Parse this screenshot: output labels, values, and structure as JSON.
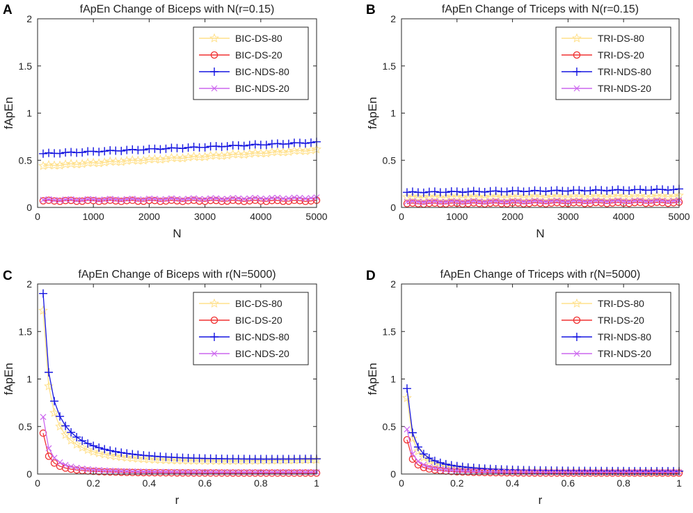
{
  "chart_data": [
    {
      "panel": "A",
      "type": "line",
      "title": "fApEn Change of Biceps with N(r=0.15)",
      "xlabel": "N",
      "ylabel": "fApEn",
      "xlim": [
        0,
        5000
      ],
      "ylim": [
        0,
        2
      ],
      "xticks": [
        0,
        1000,
        2000,
        3000,
        4000,
        5000
      ],
      "xtick_labels": [
        "0",
        "1000",
        "2000",
        "3000",
        "4000",
        "5000"
      ],
      "yticks": [
        0,
        0.5,
        1,
        1.5,
        2
      ],
      "ytick_labels": [
        "0",
        "0.5",
        "1",
        "1.5",
        "2"
      ],
      "legend_position": "top-right",
      "series": [
        {
          "name": "BIC-DS-80",
          "color": "#ffe08a",
          "marker": "star",
          "x_range": [
            100,
            5000
          ],
          "points": 50,
          "y_start": 0.44,
          "y_end": 0.61,
          "shape": "linear"
        },
        {
          "name": "BIC-DS-20",
          "color": "#f03030",
          "marker": "circle",
          "x_range": [
            100,
            5000
          ],
          "points": 50,
          "y_start": 0.07,
          "y_end": 0.07,
          "shape": "linear"
        },
        {
          "name": "BIC-NDS-80",
          "color": "#1515e0",
          "marker": "plus",
          "x_range": [
            100,
            5000
          ],
          "points": 50,
          "y_start": 0.57,
          "y_end": 0.69,
          "shape": "linear"
        },
        {
          "name": "BIC-NDS-20",
          "color": "#cc66ee",
          "marker": "cross",
          "x_range": [
            100,
            5000
          ],
          "points": 50,
          "y_start": 0.08,
          "y_end": 0.1,
          "shape": "linear"
        }
      ]
    },
    {
      "panel": "B",
      "type": "line",
      "title": "fApEn Change of Triceps with N(r=0.15)",
      "xlabel": "N",
      "ylabel": "fApEn",
      "xlim": [
        0,
        5000
      ],
      "ylim": [
        0,
        2
      ],
      "xticks": [
        0,
        1000,
        2000,
        3000,
        4000,
        5000
      ],
      "xtick_labels": [
        "0",
        "1000",
        "2000",
        "3000",
        "4000",
        "5000"
      ],
      "yticks": [
        0,
        0.5,
        1,
        1.5,
        2
      ],
      "ytick_labels": [
        "0",
        "0.5",
        "1",
        "1.5",
        "2"
      ],
      "legend_position": "top-right",
      "series": [
        {
          "name": "TRI-DS-80",
          "color": "#ffe08a",
          "marker": "star",
          "x_range": [
            100,
            5000
          ],
          "points": 50,
          "y_start": 0.11,
          "y_end": 0.12,
          "shape": "linear"
        },
        {
          "name": "TRI-DS-20",
          "color": "#f03030",
          "marker": "circle",
          "x_range": [
            100,
            5000
          ],
          "points": 50,
          "y_start": 0.04,
          "y_end": 0.05,
          "shape": "linear"
        },
        {
          "name": "TRI-NDS-80",
          "color": "#1515e0",
          "marker": "plus",
          "x_range": [
            100,
            5000
          ],
          "points": 50,
          "y_start": 0.16,
          "y_end": 0.19,
          "shape": "linear"
        },
        {
          "name": "TRI-NDS-20",
          "color": "#cc66ee",
          "marker": "cross",
          "x_range": [
            100,
            5000
          ],
          "points": 50,
          "y_start": 0.06,
          "y_end": 0.07,
          "shape": "linear"
        }
      ]
    },
    {
      "panel": "C",
      "type": "line",
      "title": "fApEn Change of Biceps with r(N=5000)",
      "xlabel": "r",
      "ylabel": "fApEn",
      "xlim": [
        0,
        1
      ],
      "ylim": [
        0,
        2
      ],
      "xticks": [
        0,
        0.2,
        0.4,
        0.6,
        0.8,
        1
      ],
      "xtick_labels": [
        "0",
        "0.2",
        "0.4",
        "0.6",
        "0.8",
        "1"
      ],
      "yticks": [
        0,
        0.5,
        1,
        1.5,
        2
      ],
      "ytick_labels": [
        "0",
        "0.5",
        "1",
        "1.5",
        "2"
      ],
      "legend_position": "top-right",
      "series": [
        {
          "name": "BIC-DS-80",
          "color": "#ffe08a",
          "marker": "star",
          "x_range": [
            0.02,
            1
          ],
          "points": 50,
          "y_start": 1.72,
          "y_end": 0.15,
          "shape": "decay",
          "exponent": 0.9
        },
        {
          "name": "BIC-DS-20",
          "color": "#f03030",
          "marker": "circle",
          "x_range": [
            0.02,
            1
          ],
          "points": 50,
          "y_start": 0.43,
          "y_end": 0.01,
          "shape": "decay",
          "exponent": 1.2
        },
        {
          "name": "BIC-NDS-80",
          "color": "#1515e0",
          "marker": "plus",
          "x_range": [
            0.02,
            1
          ],
          "points": 50,
          "y_start": 1.9,
          "y_end": 0.16,
          "shape": "decay",
          "exponent": 0.83
        },
        {
          "name": "BIC-NDS-20",
          "color": "#cc66ee",
          "marker": "cross",
          "x_range": [
            0.02,
            1
          ],
          "points": 50,
          "y_start": 0.6,
          "y_end": 0.02,
          "shape": "decay",
          "exponent": 1.15
        }
      ]
    },
    {
      "panel": "D",
      "type": "line",
      "title": "fApEn Change of Triceps with r(N=5000)",
      "xlabel": "r",
      "ylabel": "fApEn",
      "xlim": [
        0,
        1
      ],
      "ylim": [
        0,
        2
      ],
      "xticks": [
        0,
        0.2,
        0.4,
        0.6,
        0.8,
        1
      ],
      "xtick_labels": [
        "0",
        "0.2",
        "0.4",
        "0.6",
        "0.8",
        "1"
      ],
      "yticks": [
        0,
        0.5,
        1,
        1.5,
        2
      ],
      "ytick_labels": [
        "0",
        "0.5",
        "1",
        "1.5",
        "2"
      ],
      "legend_position": "top-right",
      "series": [
        {
          "name": "TRI-DS-80",
          "color": "#ffe08a",
          "marker": "star",
          "x_range": [
            0.02,
            1
          ],
          "points": 50,
          "y_start": 0.8,
          "y_end": 0.02,
          "shape": "decay",
          "exponent": 1.1
        },
        {
          "name": "TRI-DS-20",
          "color": "#f03030",
          "marker": "circle",
          "x_range": [
            0.02,
            1
          ],
          "points": 50,
          "y_start": 0.36,
          "y_end": 0.01,
          "shape": "decay",
          "exponent": 1.2
        },
        {
          "name": "TRI-NDS-80",
          "color": "#1515e0",
          "marker": "plus",
          "x_range": [
            0.02,
            1
          ],
          "points": 50,
          "y_start": 0.9,
          "y_end": 0.03,
          "shape": "decay",
          "exponent": 1.05
        },
        {
          "name": "TRI-NDS-20",
          "color": "#cc66ee",
          "marker": "cross",
          "x_range": [
            0.02,
            1
          ],
          "points": 50,
          "y_start": 0.47,
          "y_end": 0.02,
          "shape": "decay",
          "exponent": 1.15
        }
      ]
    }
  ]
}
